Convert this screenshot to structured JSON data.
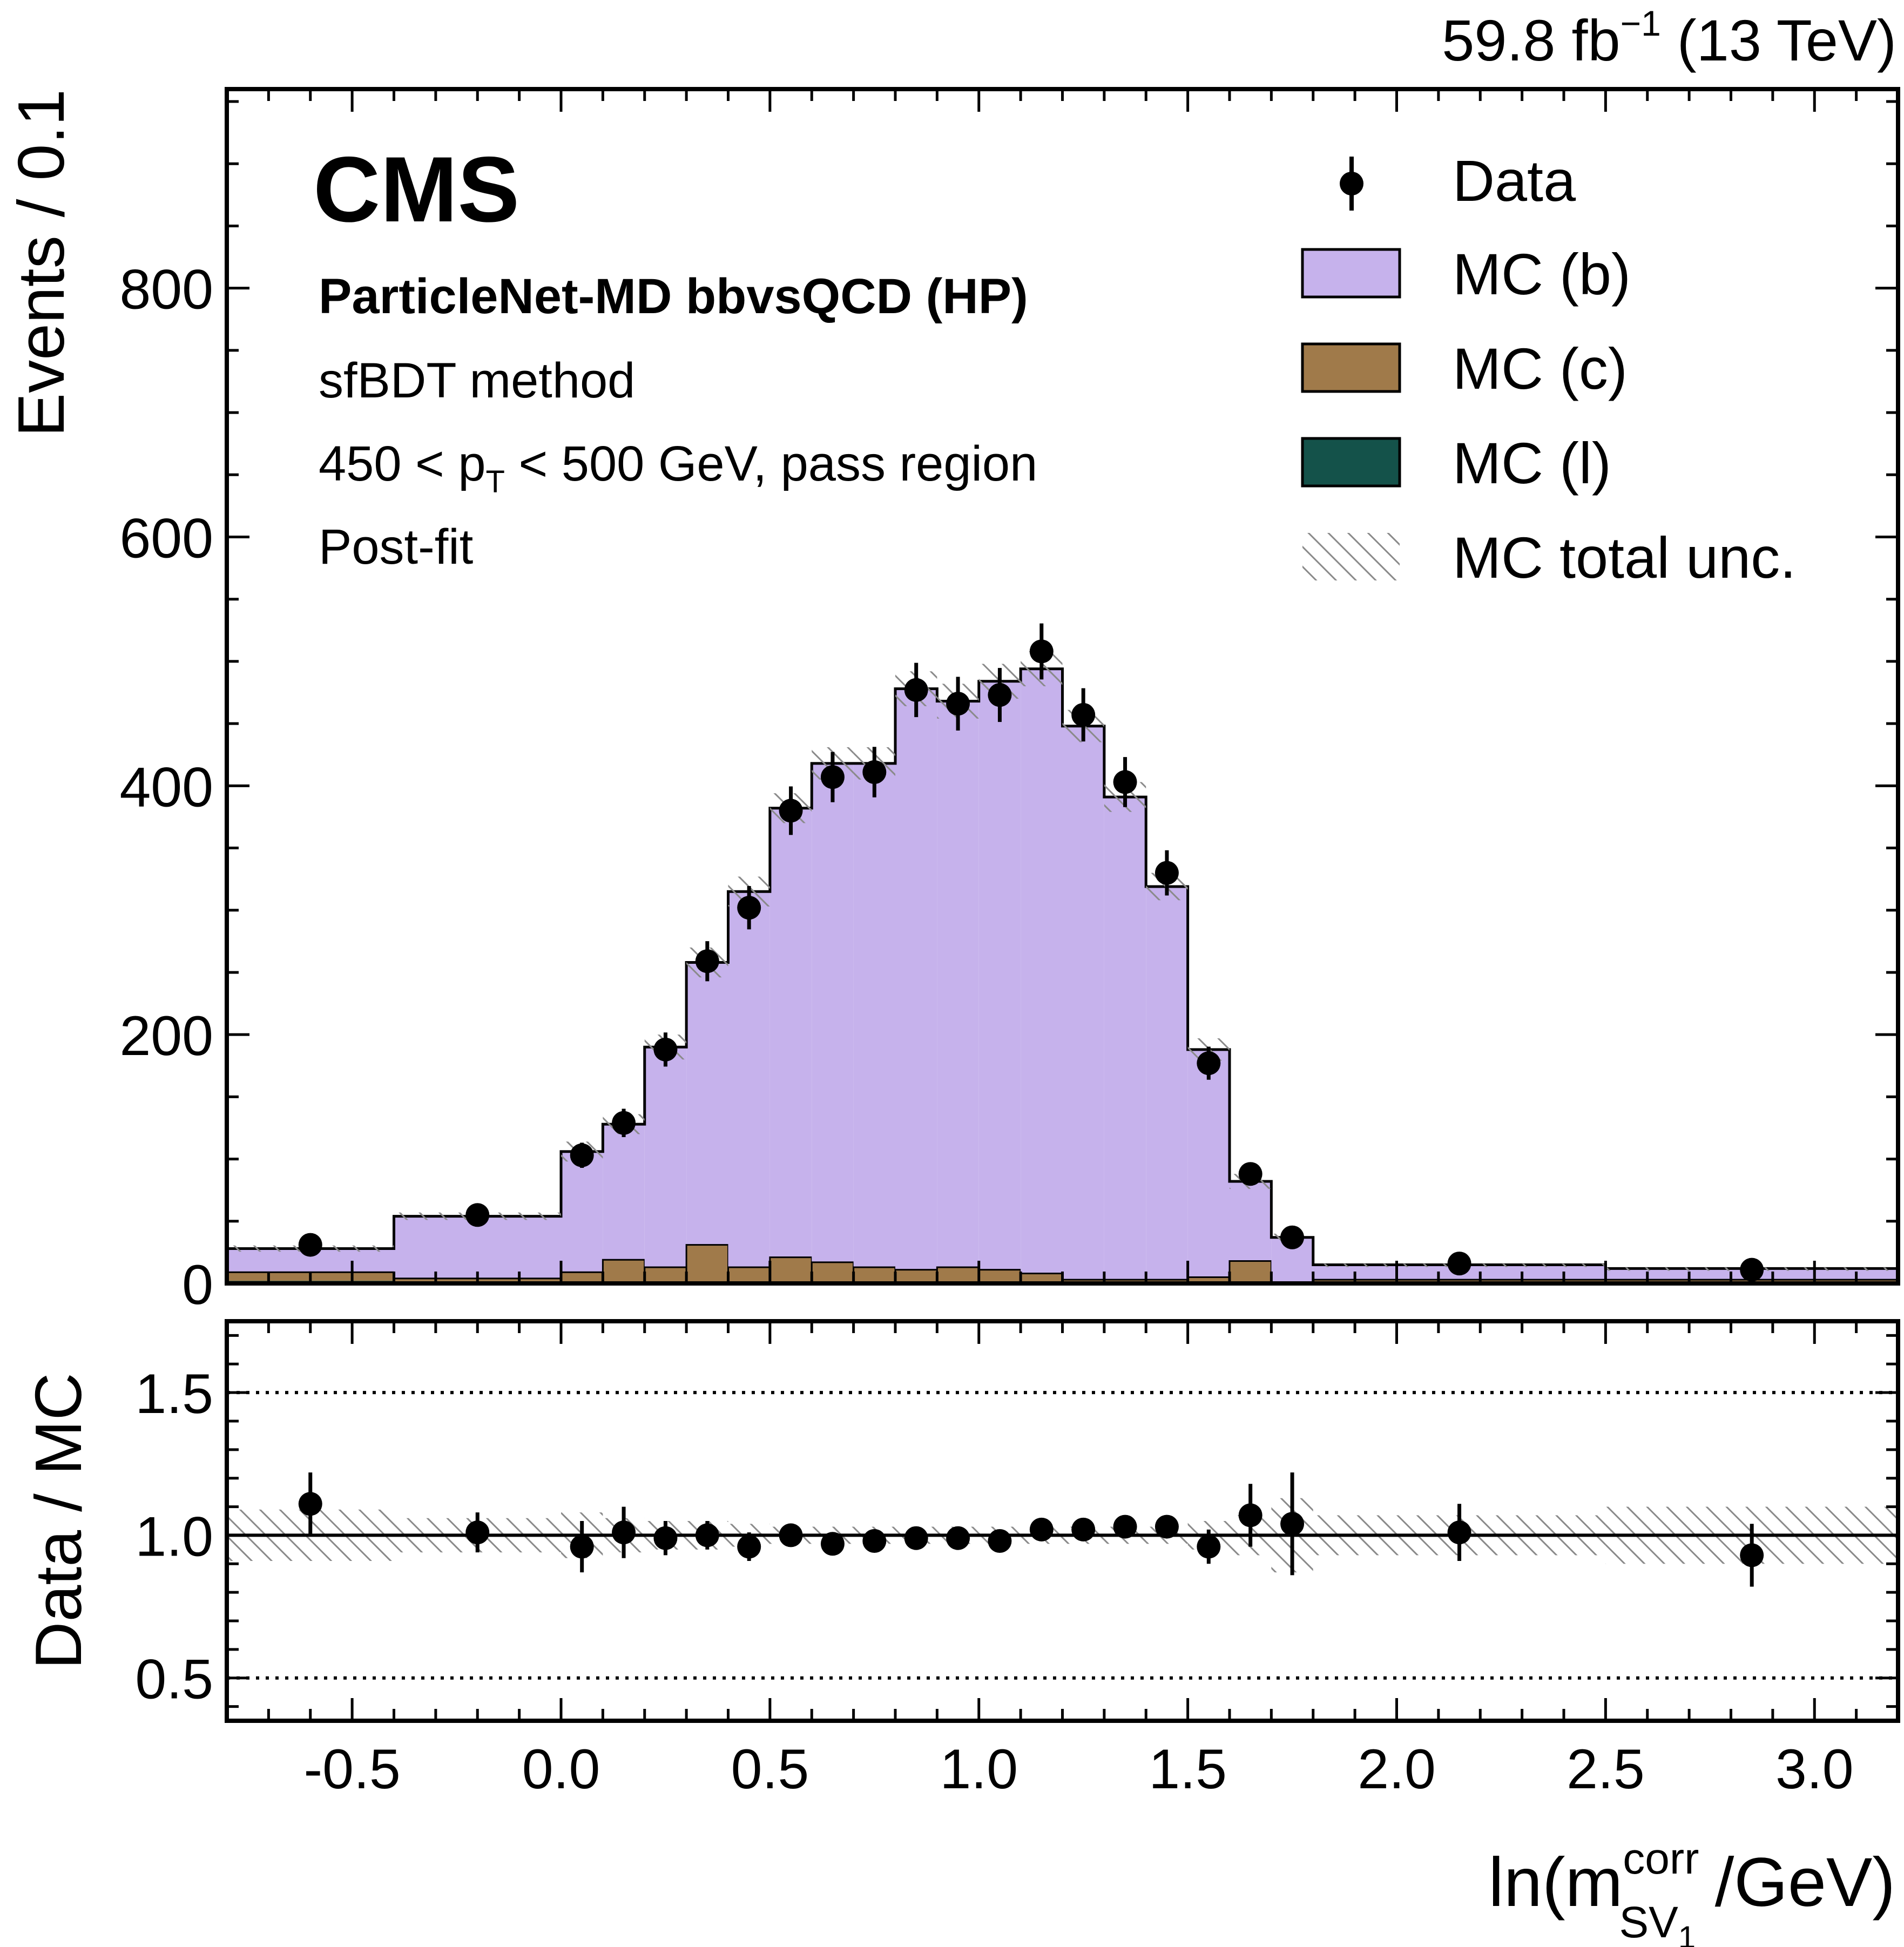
{
  "lumi_label": {
    "main": "59.8 fb",
    "sup": "−1",
    "tail": " (13 TeV)"
  },
  "experiment": "CMS",
  "annotations": {
    "line1": "ParticleNet-MD bbvsQCD (HP)",
    "line2": "sfBDT method",
    "line3_pre": "450 < p",
    "line3_sub": "T",
    "line3_post": " < 500 GeV, pass region",
    "line4": "Post-fit"
  },
  "legend": {
    "data": "Data",
    "mc_b": "MC (b)",
    "mc_c": "MC (c)",
    "mc_l": "MC (l)",
    "unc": "MC total unc."
  },
  "colors": {
    "mc_b": "#c6b2ec",
    "mc_c": "#a07a4a",
    "mc_l": "#14524a",
    "data": "#000000",
    "hatch": "#8a8a8a"
  },
  "chart_data": {
    "type": "histogram",
    "bin_edges": [
      -0.8,
      -0.4,
      0.0,
      0.1,
      0.2,
      0.3,
      0.4,
      0.5,
      0.6,
      0.7,
      0.8,
      0.9,
      1.0,
      1.1,
      1.2,
      1.3,
      1.4,
      1.5,
      1.6,
      1.7,
      1.8,
      2.5,
      3.2
    ],
    "mc_b_stack_total": [
      28,
      54,
      106,
      128,
      190,
      258,
      315,
      382,
      418,
      418,
      478,
      468,
      484,
      494,
      448,
      391,
      319,
      188,
      82,
      37,
      15,
      12
    ],
    "mc_c": [
      7,
      3,
      8,
      18,
      12,
      30,
      12,
      20,
      16,
      12,
      10,
      12,
      10,
      7,
      2,
      2,
      2,
      4,
      17,
      0,
      2,
      2
    ],
    "mc_l": [
      2,
      1,
      1,
      1,
      1,
      1,
      1,
      1,
      1,
      1,
      1,
      1,
      1,
      1,
      1,
      1,
      1,
      1,
      1,
      0,
      1,
      1
    ],
    "mc_total_unc": [
      2.5,
      3,
      8,
      8,
      10,
      12,
      12,
      12,
      13,
      13,
      14,
      14,
      14,
      14,
      13,
      12,
      11,
      9,
      6,
      3,
      0.8,
      0.8
    ],
    "data": {
      "x": [
        -0.6,
        -0.2,
        0.05,
        0.15,
        0.25,
        0.35,
        0.45,
        0.55,
        0.65,
        0.75,
        0.85,
        0.95,
        1.05,
        1.15,
        1.25,
        1.35,
        1.45,
        1.55,
        1.65,
        1.75,
        2.15,
        2.85
      ],
      "y": [
        31,
        55,
        103,
        129,
        188,
        259,
        302,
        380,
        407,
        411,
        477,
        466,
        473,
        508,
        457,
        403,
        330,
        177,
        88,
        37,
        16,
        11
      ],
      "yerr": [
        5.5,
        7.4,
        10.1,
        11.4,
        13.7,
        16.1,
        17.4,
        19.5,
        20.2,
        20.3,
        21.8,
        21.6,
        21.7,
        22.5,
        21.4,
        20.1,
        18.2,
        13.3,
        9.4,
        6.1,
        4,
        3.3
      ]
    },
    "ratio": {
      "x": [
        -0.6,
        -0.2,
        0.05,
        0.15,
        0.25,
        0.35,
        0.45,
        0.55,
        0.65,
        0.75,
        0.85,
        0.95,
        1.05,
        1.15,
        1.25,
        1.35,
        1.45,
        1.55,
        1.65,
        1.75,
        2.15,
        2.85
      ],
      "y": [
        1.11,
        1.01,
        0.96,
        1.01,
        0.99,
        1.0,
        0.96,
        1.0,
        0.97,
        0.98,
        0.99,
        0.99,
        0.98,
        1.02,
        1.02,
        1.03,
        1.03,
        0.96,
        1.07,
        1.04,
        1.01,
        0.93
      ],
      "yerr": [
        0.11,
        0.07,
        0.09,
        0.09,
        0.06,
        0.05,
        0.05,
        0.04,
        0.04,
        0.04,
        0.03,
        0.03,
        0.03,
        0.03,
        0.03,
        0.04,
        0.04,
        0.06,
        0.11,
        0.18,
        0.1,
        0.11
      ],
      "unc_band": [
        0.09,
        0.06,
        0.08,
        0.06,
        0.05,
        0.05,
        0.04,
        0.03,
        0.03,
        0.03,
        0.03,
        0.03,
        0.03,
        0.03,
        0.03,
        0.03,
        0.03,
        0.05,
        0.07,
        0.13,
        0.07,
        0.1
      ]
    },
    "xlim": [
      -0.8,
      3.2
    ],
    "ylim_main": [
      0,
      960
    ],
    "ylim_ratio": [
      0.35,
      1.75
    ],
    "xticks": [
      -0.5,
      0.0,
      0.5,
      1.0,
      1.5,
      2.0,
      2.5,
      3.0
    ],
    "xtick_labels": [
      "-0.5",
      "0.0",
      "0.5",
      "1.0",
      "1.5",
      "2.0",
      "2.5",
      "3.0"
    ],
    "yticks_main": [
      0,
      200,
      400,
      600,
      800
    ],
    "ytick_labels_main": [
      "0",
      "200",
      "400",
      "600",
      "800"
    ],
    "yticks_ratio": [
      0.5,
      1.0,
      1.5
    ],
    "ytick_labels_ratio": [
      "0.5",
      "1.0",
      "1.5"
    ],
    "ylabel_main": "Events / 0.1",
    "ylabel_ratio": "Data / MC",
    "xlabel": {
      "pre": "ln(m",
      "sup": "corr",
      "sub": "SV",
      "subsub": "1",
      "post": " /GeV)"
    },
    "reference_lines": [
      0.5,
      1.0,
      1.5
    ],
    "legend_position": "top-right"
  }
}
